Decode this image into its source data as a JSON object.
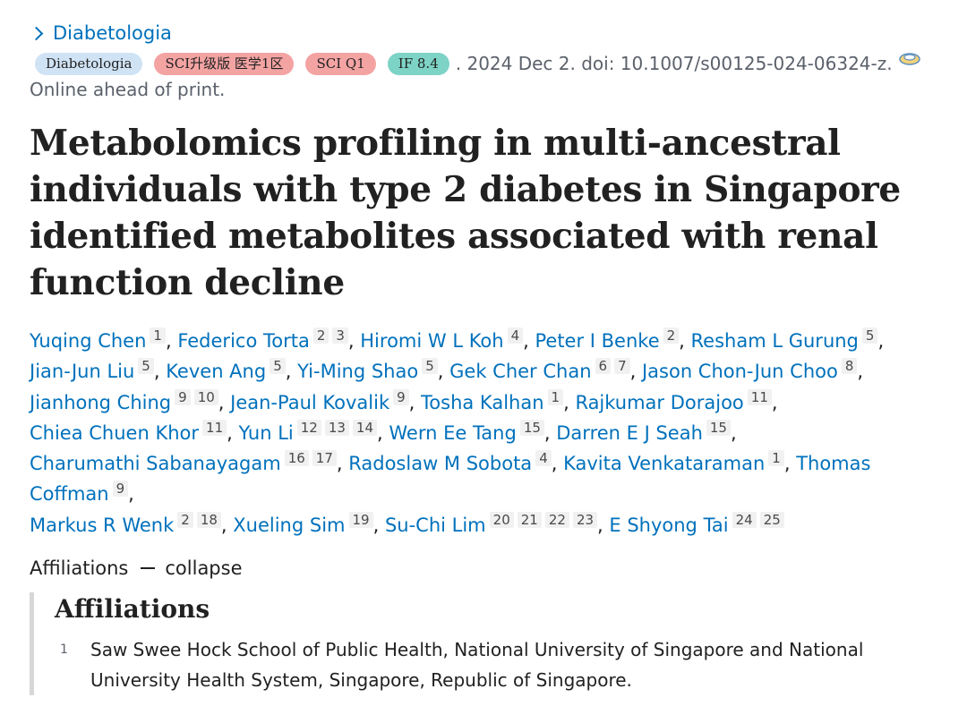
{
  "journal_link": {
    "label": "Diabetologia"
  },
  "badges": [
    {
      "label": "Diabetologia"
    },
    {
      "label": "SCI升级版 医学1区"
    },
    {
      "label": "SCI Q1"
    },
    {
      "label": "IF 8.4"
    }
  ],
  "citation": ". 2024 Dec 2. doi: 10.1007/s00125-024-06324-z.",
  "online_status": "Online ahead of print.",
  "title": "Metabolomics profiling in multi-ancestral individuals with type 2 diabetes in Singapore identified metabolites associated with renal function decline",
  "authors": [
    {
      "name": "Yuqing Chen",
      "sups": [
        "1"
      ]
    },
    {
      "name": "Federico Torta",
      "sups": [
        "2",
        "3"
      ]
    },
    {
      "name": "Hiromi W L Koh",
      "sups": [
        "4"
      ]
    },
    {
      "name": "Peter I Benke",
      "sups": [
        "2"
      ]
    },
    {
      "name": "Resham L Gurung",
      "sups": [
        "5"
      ]
    },
    {
      "name": "Jian-Jun Liu",
      "sups": [
        "5"
      ]
    },
    {
      "name": "Keven Ang",
      "sups": [
        "5"
      ]
    },
    {
      "name": "Yi-Ming Shao",
      "sups": [
        "5"
      ]
    },
    {
      "name": "Gek Cher Chan",
      "sups": [
        "6",
        "7"
      ]
    },
    {
      "name": "Jason Chon-Jun Choo",
      "sups": [
        "8"
      ]
    },
    {
      "name": "Jianhong Ching",
      "sups": [
        "9",
        "10"
      ]
    },
    {
      "name": "Jean-Paul Kovalik",
      "sups": [
        "9"
      ]
    },
    {
      "name": "Tosha Kalhan",
      "sups": [
        "1"
      ]
    },
    {
      "name": "Rajkumar Dorajoo",
      "sups": [
        "11"
      ]
    },
    {
      "name": "Chiea Chuen Khor",
      "sups": [
        "11"
      ]
    },
    {
      "name": "Yun Li",
      "sups": [
        "12",
        "13",
        "14"
      ]
    },
    {
      "name": "Wern Ee Tang",
      "sups": [
        "15"
      ]
    },
    {
      "name": "Darren E J Seah",
      "sups": [
        "15"
      ]
    },
    {
      "name": "Charumathi Sabanayagam",
      "sups": [
        "16",
        "17"
      ]
    },
    {
      "name": "Radoslaw M Sobota",
      "sups": [
        "4"
      ]
    },
    {
      "name": "Kavita Venkataraman",
      "sups": [
        "1"
      ]
    },
    {
      "name": "Thomas Coffman",
      "sups": [
        "9"
      ]
    },
    {
      "name": "Markus R Wenk",
      "sups": [
        "2",
        "18"
      ]
    },
    {
      "name": "Xueling Sim",
      "sups": [
        "19"
      ]
    },
    {
      "name": "Su-Chi Lim",
      "sups": [
        "20",
        "21",
        "22",
        "23"
      ]
    },
    {
      "name": "E Shyong Tai",
      "sups": [
        "24",
        "25"
      ]
    }
  ],
  "affiliations_toggle": {
    "label": "Affiliations",
    "action": "collapse"
  },
  "affiliations_panel": {
    "heading": "Affiliations",
    "items": [
      {
        "num": "1",
        "text": "Saw Swee Hock School of Public Health, National University of Singapore and National University Health System, Singapore, Republic of Singapore."
      }
    ]
  }
}
